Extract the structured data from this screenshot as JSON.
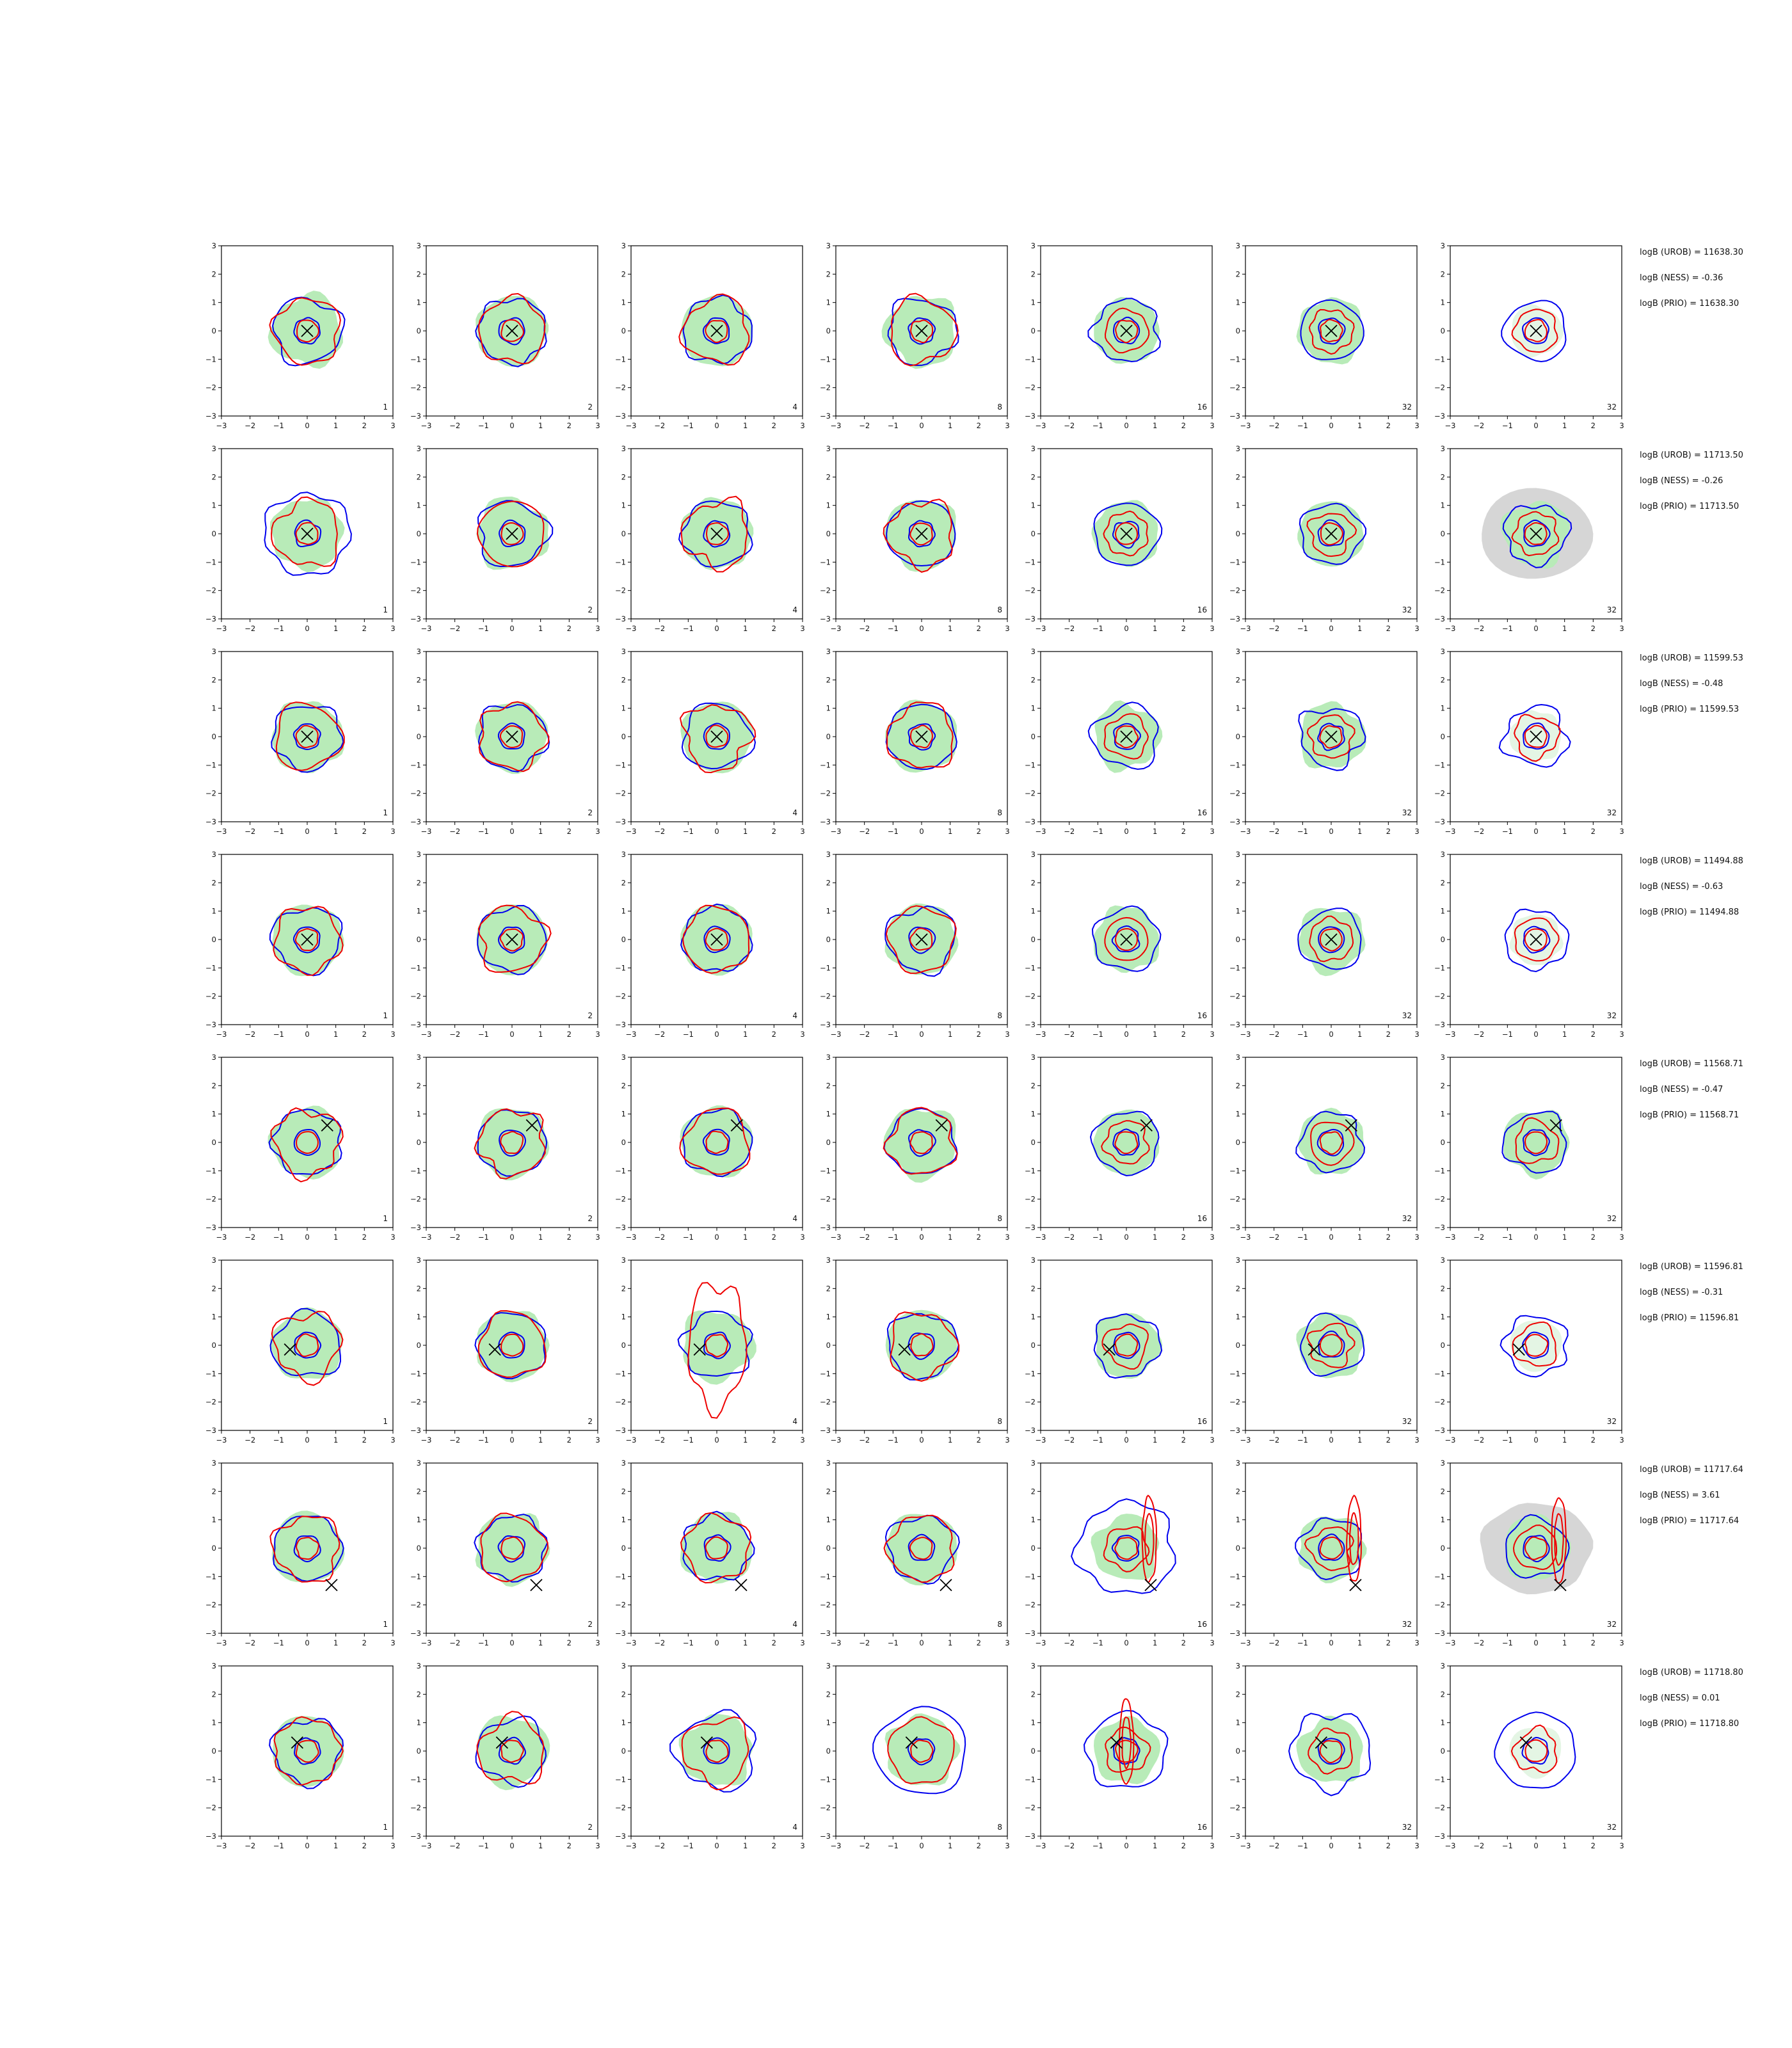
{
  "chart_data": {
    "type": "contour-grid",
    "x_ticks": [
      "−3",
      "−2",
      "−1",
      "0",
      "1",
      "2",
      "3"
    ],
    "y_ticks": [
      "3",
      "2",
      "1",
      "0",
      "−1",
      "−2",
      "−3"
    ],
    "xlim": [
      -3,
      3
    ],
    "ylim": [
      -3,
      3
    ],
    "columns": [
      "1",
      "2",
      "4",
      "8",
      "16",
      "32",
      "32"
    ],
    "colors": {
      "filled": "#b8ebb8",
      "grey_filled": "#d6d6d6",
      "blue_contour": "#0000ee",
      "red_contour": "#ee0000",
      "truth_marker": "#000000"
    },
    "rows": [
      {
        "urob": "logB (UROB) = 11638.30",
        "ness": "logB (NESS) = -0.36",
        "prio": "logB (PRIO) = 11638.30",
        "truth": [
          0.0,
          0.0
        ],
        "greyLastPanel": false
      },
      {
        "urob": "logB (UROB) = 11713.50",
        "ness": "logB (NESS) = -0.26",
        "prio": "logB (PRIO) = 11713.50",
        "truth": [
          0.0,
          0.0
        ],
        "greyLastPanel": true
      },
      {
        "urob": "logB (UROB) = 11599.53",
        "ness": "logB (NESS) = -0.48",
        "prio": "logB (PRIO) = 11599.53",
        "truth": [
          0.0,
          0.0
        ],
        "greyLastPanel": false
      },
      {
        "urob": "logB (UROB) = 11494.88",
        "ness": "logB (NESS) = -0.63",
        "prio": "logB (PRIO) = 11494.88",
        "truth": [
          0.0,
          0.0
        ],
        "greyLastPanel": false
      },
      {
        "urob": "logB (UROB) = 11568.71",
        "ness": "logB (NESS) = -0.47",
        "prio": "logB (PRIO) = 11568.71",
        "truth": [
          0.7,
          0.6
        ],
        "greyLastPanel": false
      },
      {
        "urob": "logB (UROB) = 11596.81",
        "ness": "logB (NESS) = -0.31",
        "prio": "logB (PRIO) = 11596.81",
        "truth": [
          -0.6,
          -0.15
        ],
        "greyLastPanel": false
      },
      {
        "urob": "logB (UROB) = 11717.64",
        "ness": "logB (NESS) = 3.61",
        "prio": "logB (PRIO) = 11717.64",
        "truth": [
          0.85,
          -1.3
        ],
        "greyLastPanel": true
      },
      {
        "urob": "logB (UROB) = 11718.80",
        "ness": "logB (NESS) = 0.01",
        "prio": "logB (PRIO) = 11718.80",
        "truth": [
          -0.35,
          0.3
        ],
        "greyLastPanel": false
      }
    ]
  }
}
